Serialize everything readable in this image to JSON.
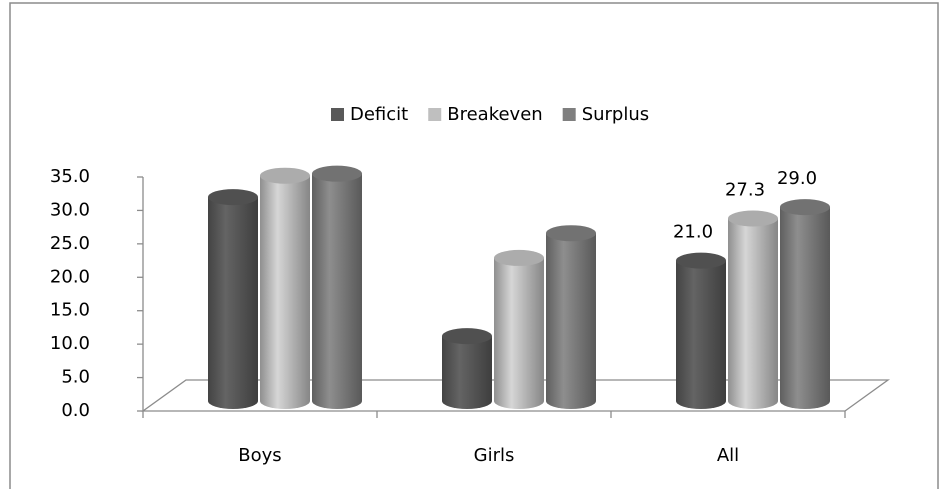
{
  "chart_data": {
    "type": "bar3d",
    "categories": [
      "Boys",
      "Girls",
      "All"
    ],
    "series": [
      {
        "name": "Deficit",
        "color": "#595959",
        "values": [
          30.5,
          9.7,
          21.0
        ],
        "value_labels": [
          null,
          null,
          "21.0"
        ]
      },
      {
        "name": "Breakeven",
        "color": "#bfbfbf",
        "values": [
          33.7,
          21.4,
          27.3
        ],
        "value_labels": [
          null,
          null,
          "27.3"
        ]
      },
      {
        "name": "Surplus",
        "color": "#7f7f7f",
        "values": [
          34.0,
          25.1,
          29.0
        ],
        "value_labels": [
          null,
          null,
          "29.0"
        ]
      }
    ],
    "ylim": [
      0,
      35
    ],
    "yticks": [
      {
        "value": 0,
        "label": "0.0"
      },
      {
        "value": 5,
        "label": "5.0"
      },
      {
        "value": 10,
        "label": "10.0"
      },
      {
        "value": 15,
        "label": "15.0"
      },
      {
        "value": 20,
        "label": "20.0"
      },
      {
        "value": 25,
        "label": "25.0"
      },
      {
        "value": 30,
        "label": "30.0"
      },
      {
        "value": 35,
        "label": "35.0"
      }
    ],
    "legend": "top",
    "grid": false
  }
}
